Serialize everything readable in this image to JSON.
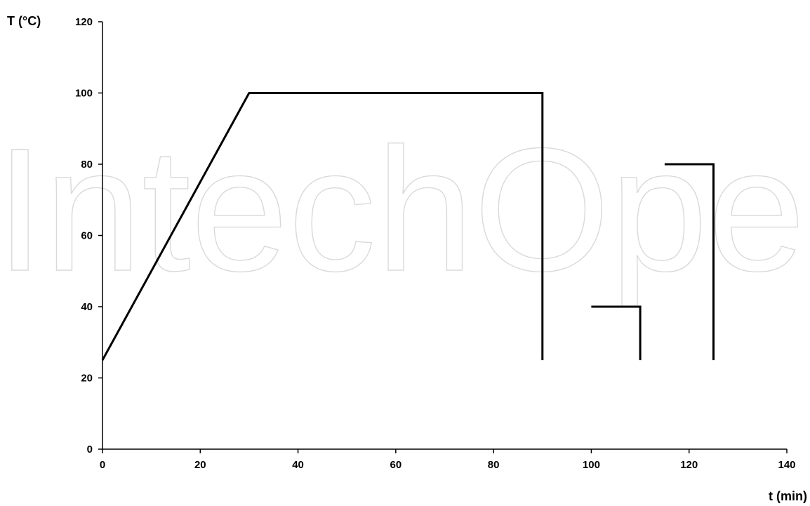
{
  "watermark": "IntechOpen",
  "chart_data": {
    "type": "line",
    "title": "",
    "xlabel": "t (min)",
    "ylabel": "T (°C)",
    "xlim": [
      0,
      140
    ],
    "ylim": [
      0,
      120
    ],
    "xticks": [
      0,
      20,
      40,
      60,
      80,
      100,
      120,
      140
    ],
    "yticks": [
      0,
      20,
      40,
      60,
      80,
      100,
      120
    ],
    "grid": false,
    "legend": "none",
    "line_color": "#000000",
    "series": [
      {
        "x": [
          0,
          30,
          90,
          90
        ],
        "y": [
          25,
          100,
          100,
          25
        ]
      },
      {
        "x": [
          100,
          110,
          110
        ],
        "y": [
          40,
          40,
          25
        ]
      },
      {
        "x": [
          115,
          125,
          125
        ],
        "y": [
          80,
          80,
          25
        ]
      }
    ]
  }
}
